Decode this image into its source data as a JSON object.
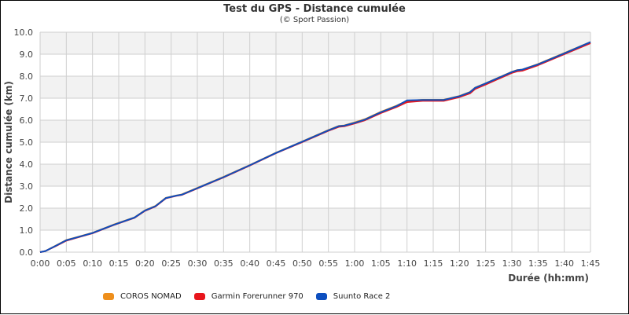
{
  "chart_data": {
    "type": "line",
    "title": "Test du GPS - Distance cumulée",
    "subtitle": "(© Sport Passion)",
    "xlabel": "Durée (hh:mm)",
    "ylabel": "Distance cumulée (km)",
    "xlim_minutes": [
      0,
      105
    ],
    "ylim": [
      0,
      10
    ],
    "grid": true,
    "legend_position": "bottom",
    "x_ticks": [
      "0:00",
      "0:05",
      "0:10",
      "0:15",
      "0:20",
      "0:25",
      "0:30",
      "0:35",
      "0:40",
      "0:45",
      "0:50",
      "0:55",
      "1:00",
      "1:05",
      "1:10",
      "1:15",
      "1:20",
      "1:25",
      "1:30",
      "1:35",
      "1:40",
      "1:45"
    ],
    "y_ticks": [
      "0.0",
      "1.0",
      "2.0",
      "3.0",
      "4.0",
      "5.0",
      "6.0",
      "7.0",
      "8.0",
      "9.0",
      "10.0"
    ],
    "x_minutes": [
      0,
      1,
      3,
      5,
      7,
      10,
      14,
      18,
      20,
      22,
      24,
      26,
      27,
      30,
      35,
      40,
      45,
      50,
      55,
      57,
      58,
      60,
      62,
      65,
      68,
      70,
      73,
      77,
      80,
      82,
      83,
      85,
      90,
      91,
      92,
      95,
      100,
      105
    ],
    "series": [
      {
        "name": "COROS NOMAD",
        "color": "#ee8f1c",
        "values": [
          0.0,
          0.05,
          0.3,
          0.55,
          0.68,
          0.88,
          1.25,
          1.58,
          1.9,
          2.1,
          2.47,
          2.58,
          2.62,
          2.92,
          3.42,
          3.96,
          4.52,
          5.03,
          5.55,
          5.74,
          5.76,
          5.9,
          6.05,
          6.38,
          6.66,
          6.88,
          6.93,
          6.93,
          7.1,
          7.28,
          7.48,
          7.68,
          8.2,
          8.28,
          8.3,
          8.55,
          9.05,
          9.55
        ]
      },
      {
        "name": "Garmin Forerunner 970",
        "color": "#e8151c",
        "values": [
          0.0,
          0.05,
          0.28,
          0.52,
          0.66,
          0.86,
          1.23,
          1.56,
          1.88,
          2.08,
          2.45,
          2.56,
          2.6,
          2.9,
          3.4,
          3.94,
          4.5,
          5.0,
          5.52,
          5.7,
          5.72,
          5.85,
          6.0,
          6.32,
          6.6,
          6.82,
          6.88,
          6.88,
          7.05,
          7.22,
          7.42,
          7.62,
          8.15,
          8.22,
          8.25,
          8.5,
          9.0,
          9.5
        ]
      },
      {
        "name": "Suunto Race 2",
        "color": "#0d4fbf",
        "values": [
          0.0,
          0.05,
          0.29,
          0.54,
          0.67,
          0.87,
          1.24,
          1.57,
          1.89,
          2.09,
          2.46,
          2.57,
          2.61,
          2.91,
          3.41,
          3.95,
          4.51,
          5.02,
          5.54,
          5.73,
          5.75,
          5.88,
          6.03,
          6.36,
          6.64,
          6.9,
          6.92,
          6.92,
          7.09,
          7.27,
          7.47,
          7.67,
          8.19,
          8.27,
          8.3,
          8.54,
          9.04,
          9.55
        ]
      }
    ]
  },
  "colors": {
    "band": "#f2f2f2",
    "grid": "#cfcfcf",
    "axis_text": "#444444",
    "title_text": "#333333"
  }
}
